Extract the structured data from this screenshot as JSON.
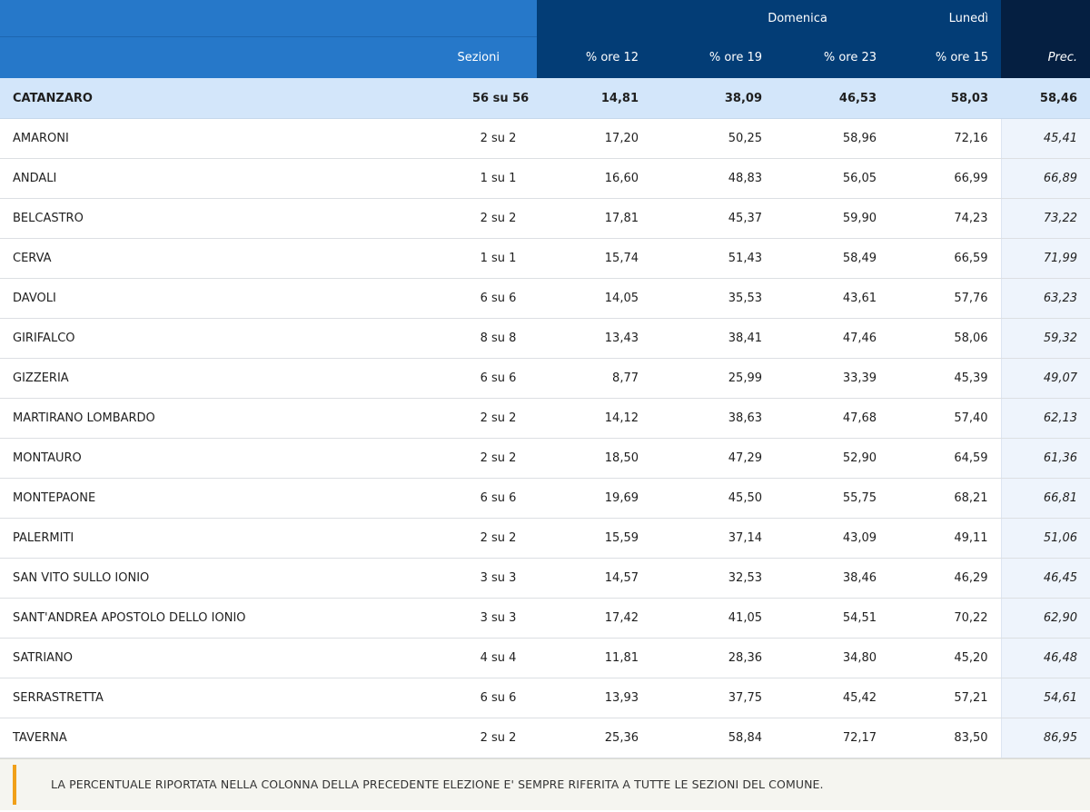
{
  "header": {
    "group_domenica": "Domenica",
    "group_lunedi": "Lunedì",
    "col_sezioni": "Sezioni",
    "col_ore12": "% ore 12",
    "col_ore19": "% ore 19",
    "col_ore23": "% ore 23",
    "col_ore15": "% ore 15",
    "col_prec": "Prec."
  },
  "total": {
    "name": "CATANZARO",
    "sezioni": "56 su 56",
    "ore12": "14,81",
    "ore19": "38,09",
    "ore23": "46,53",
    "ore15": "58,03",
    "prec": "58,46"
  },
  "rows": [
    {
      "name": "AMARONI",
      "sezioni": "2 su 2",
      "ore12": "17,20",
      "ore19": "50,25",
      "ore23": "58,96",
      "ore15": "72,16",
      "prec": "45,41"
    },
    {
      "name": "ANDALI",
      "sezioni": "1 su 1",
      "ore12": "16,60",
      "ore19": "48,83",
      "ore23": "56,05",
      "ore15": "66,99",
      "prec": "66,89"
    },
    {
      "name": "BELCASTRO",
      "sezioni": "2 su 2",
      "ore12": "17,81",
      "ore19": "45,37",
      "ore23": "59,90",
      "ore15": "74,23",
      "prec": "73,22"
    },
    {
      "name": "CERVA",
      "sezioni": "1 su 1",
      "ore12": "15,74",
      "ore19": "51,43",
      "ore23": "58,49",
      "ore15": "66,59",
      "prec": "71,99"
    },
    {
      "name": "DAVOLI",
      "sezioni": "6 su 6",
      "ore12": "14,05",
      "ore19": "35,53",
      "ore23": "43,61",
      "ore15": "57,76",
      "prec": "63,23"
    },
    {
      "name": "GIRIFALCO",
      "sezioni": "8 su 8",
      "ore12": "13,43",
      "ore19": "38,41",
      "ore23": "47,46",
      "ore15": "58,06",
      "prec": "59,32"
    },
    {
      "name": "GIZZERIA",
      "sezioni": "6 su 6",
      "ore12": "8,77",
      "ore19": "25,99",
      "ore23": "33,39",
      "ore15": "45,39",
      "prec": "49,07"
    },
    {
      "name": "MARTIRANO LOMBARDO",
      "sezioni": "2 su 2",
      "ore12": "14,12",
      "ore19": "38,63",
      "ore23": "47,68",
      "ore15": "57,40",
      "prec": "62,13"
    },
    {
      "name": "MONTAURO",
      "sezioni": "2 su 2",
      "ore12": "18,50",
      "ore19": "47,29",
      "ore23": "52,90",
      "ore15": "64,59",
      "prec": "61,36"
    },
    {
      "name": "MONTEPAONE",
      "sezioni": "6 su 6",
      "ore12": "19,69",
      "ore19": "45,50",
      "ore23": "55,75",
      "ore15": "68,21",
      "prec": "66,81"
    },
    {
      "name": "PALERMITI",
      "sezioni": "2 su 2",
      "ore12": "15,59",
      "ore19": "37,14",
      "ore23": "43,09",
      "ore15": "49,11",
      "prec": "51,06"
    },
    {
      "name": "SAN VITO SULLO IONIO",
      "sezioni": "3 su 3",
      "ore12": "14,57",
      "ore19": "32,53",
      "ore23": "38,46",
      "ore15": "46,29",
      "prec": "46,45"
    },
    {
      "name": "SANT'ANDREA APOSTOLO DELLO IONIO",
      "sezioni": "3 su 3",
      "ore12": "17,42",
      "ore19": "41,05",
      "ore23": "54,51",
      "ore15": "70,22",
      "prec": "62,90"
    },
    {
      "name": "SATRIANO",
      "sezioni": "4 su 4",
      "ore12": "11,81",
      "ore19": "28,36",
      "ore23": "34,80",
      "ore15": "45,20",
      "prec": "46,48"
    },
    {
      "name": "SERRASTRETTA",
      "sezioni": "6 su 6",
      "ore12": "13,93",
      "ore19": "37,75",
      "ore23": "45,42",
      "ore15": "57,21",
      "prec": "54,61"
    },
    {
      "name": "TAVERNA",
      "sezioni": "2 su 2",
      "ore12": "25,36",
      "ore19": "58,84",
      "ore23": "72,17",
      "ore15": "83,50",
      "prec": "86,95"
    }
  ],
  "note": "LA PERCENTUALE RIPORTATA NELLA COLONNA DELLA PRECEDENTE ELEZIONE E' SEMPRE RIFERITA A TUTTE LE SEZIONI DEL COMUNE.",
  "colors": {
    "header_blue": "#2678c9",
    "header_dark": "#033d76",
    "header_night": "#051f41",
    "total_row": "#d3e6fa",
    "prec_column": "#eef4fc",
    "note_accent": "#f0a019"
  }
}
